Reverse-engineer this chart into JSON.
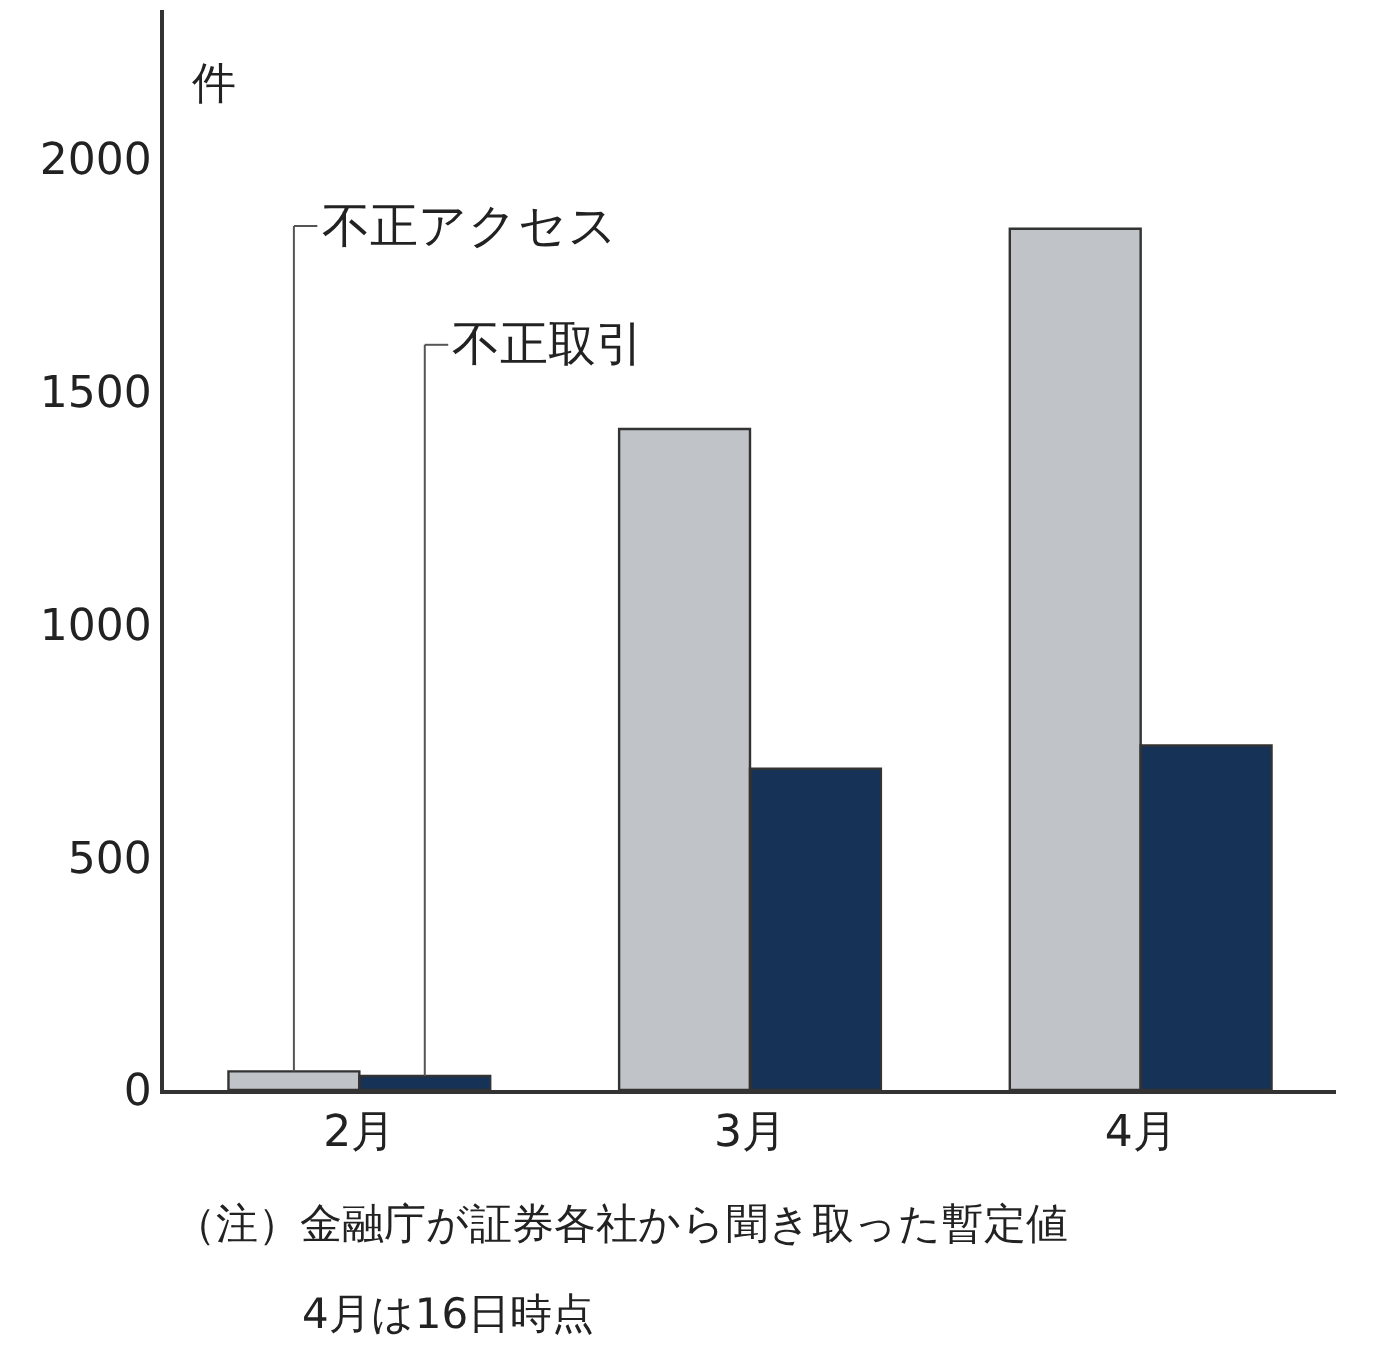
{
  "chart_data": {
    "type": "bar",
    "ylabel": "件",
    "categories": [
      "2月",
      "3月",
      "4月"
    ],
    "series": [
      {
        "name": "不正アクセス",
        "color": "#c0c3c8",
        "values": [
          40,
          1420,
          1850
        ]
      },
      {
        "name": "不正取引",
        "color": "#173257",
        "values": [
          30,
          690,
          740
        ]
      }
    ],
    "ylim": [
      0,
      2320
    ],
    "yticks": [
      0,
      500,
      1000,
      1500,
      2000
    ],
    "legend": false,
    "annotations": [
      "（注）金融庁が証券各社から聞き取った暫定値",
      "4月は16日時点"
    ]
  }
}
